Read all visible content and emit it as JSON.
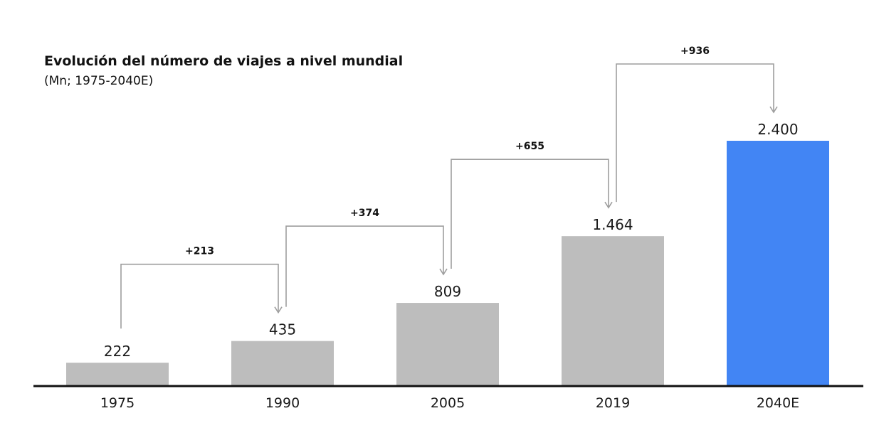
{
  "chart_data": {
    "type": "bar",
    "title": "Evolución del número de viajes a nivel mundial",
    "subtitle": "(Mn; 1975-2040E)",
    "categories": [
      "1975",
      "1990",
      "2005",
      "2019",
      "2040E"
    ],
    "values": [
      222,
      435,
      809,
      1464,
      2400
    ],
    "value_labels": [
      "222",
      "435",
      "809",
      "1.464",
      "2.400"
    ],
    "ylim": [
      0,
      2400
    ],
    "grid": false,
    "legend": "none",
    "colors": {
      "bar": "#bdbdbd",
      "highlight": "#4285f4",
      "connector": "#9e9e9e",
      "axis": "#111111"
    },
    "highlight_index": 4,
    "deltas": [
      {
        "from": 0,
        "to": 1,
        "label": "+213"
      },
      {
        "from": 1,
        "to": 2,
        "label": "+374"
      },
      {
        "from": 2,
        "to": 3,
        "label": "+655"
      },
      {
        "from": 3,
        "to": 4,
        "label": "+936"
      }
    ]
  }
}
